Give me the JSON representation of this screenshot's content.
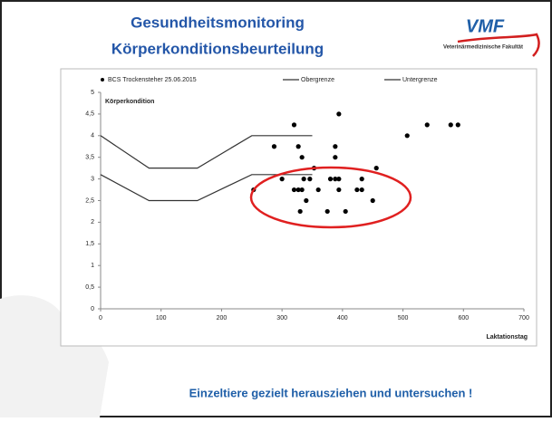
{
  "slide": {
    "title": [
      "Gesundheitsmonitoring",
      "Körperkonditionsbeurteilung"
    ],
    "logo": {
      "mark": "VMF",
      "caption": "Veterinärmedizinische Fakultät"
    },
    "footer": "Einzeltiere gezielt herausziehen und untersuchen !"
  },
  "chart_data": {
    "type": "scatter",
    "y_label": "Körperkondition",
    "x_label": "Laktationstag",
    "xlim": [
      0,
      700
    ],
    "xticks": [
      0,
      100,
      200,
      300,
      400,
      500,
      600,
      700
    ],
    "ylim": [
      0,
      5
    ],
    "yticks": [
      0,
      {
        "value": 0.5,
        "label": "0,5"
      },
      1,
      {
        "value": 1.5,
        "label": "1,5"
      },
      2,
      {
        "value": 2.5,
        "label": "2,5"
      },
      3,
      {
        "value": 3.5,
        "label": "3,5"
      },
      4,
      {
        "value": 4.5,
        "label": "4,5"
      },
      5
    ],
    "legend": "top",
    "series": [
      {
        "name": "BCS Trockensteher 25.06.2015",
        "type": "scatter",
        "color": "#000000",
        "x": [
          287,
          320,
          327,
          333,
          353,
          394,
          388,
          388,
          507,
          540,
          579,
          591,
          300,
          336,
          346,
          380,
          388,
          394,
          432,
          456,
          253,
          320,
          327,
          333,
          360,
          394,
          424,
          432,
          340,
          450,
          330,
          375,
          405
        ],
        "values": [
          3.75,
          4.25,
          3.75,
          3.5,
          3.25,
          4.5,
          3.75,
          3.5,
          4,
          4.25,
          4.25,
          4.25,
          3,
          3,
          3,
          3,
          3,
          3,
          3,
          3.25,
          2.75,
          2.75,
          2.75,
          2.75,
          2.75,
          2.75,
          2.75,
          2.75,
          2.5,
          2.5,
          2.25,
          2.25,
          2.25
        ]
      },
      {
        "name": "Obergrenze",
        "type": "line",
        "color": "#333333",
        "x": [
          0,
          80,
          160,
          250,
          350
        ],
        "values": [
          4,
          3.25,
          3.25,
          4,
          4
        ]
      },
      {
        "name": "Untergrenze",
        "type": "line",
        "color": "#333333",
        "x": [
          0,
          80,
          160,
          250,
          350
        ],
        "values": [
          3.1,
          2.5,
          2.5,
          3.1,
          3.1
        ]
      }
    ]
  }
}
